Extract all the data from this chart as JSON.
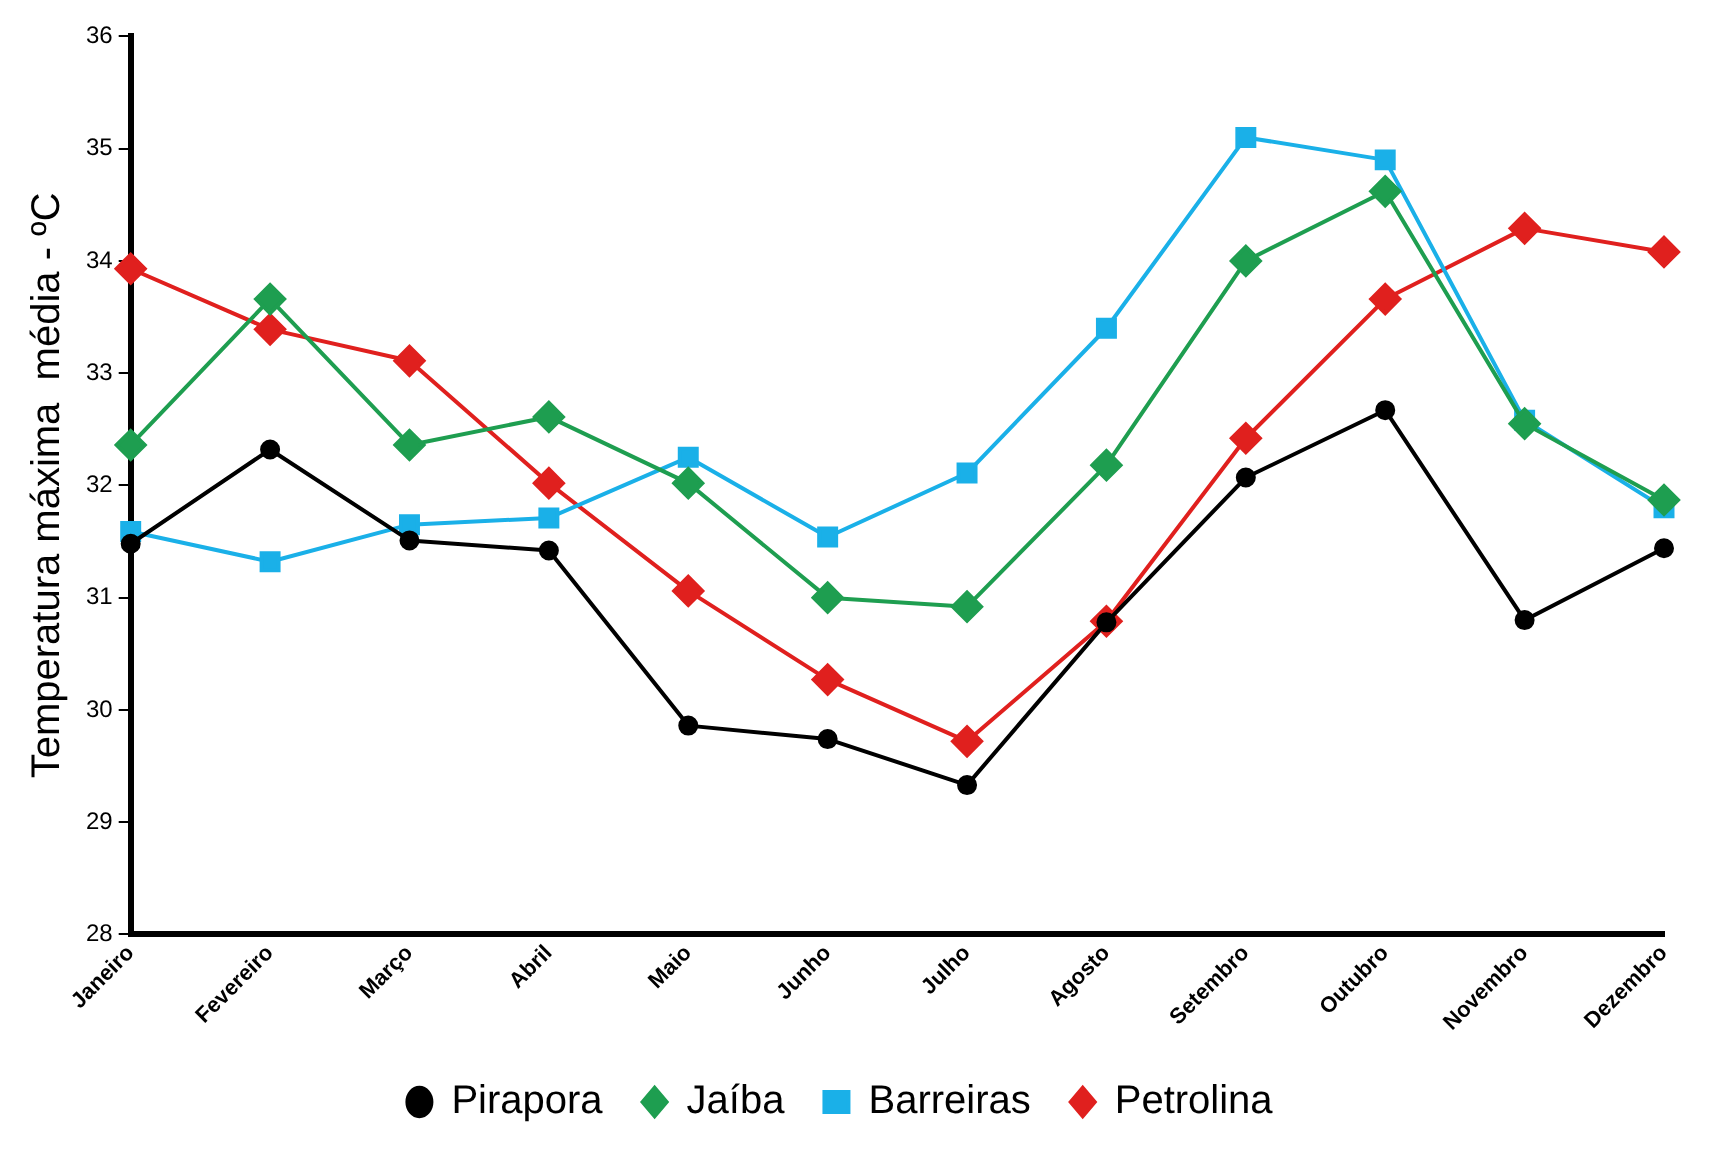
{
  "chart_data": {
    "type": "line",
    "ylabel": "Temperatura máxima  média - ºC",
    "categories": [
      "Janeiro",
      "Fevereiro",
      "Março",
      "Abril",
      "Maio",
      "Junho",
      "Julho",
      "Agosto",
      "Setembro",
      "Outubro",
      "Novembro",
      "Dezembro"
    ],
    "series": [
      {
        "name": "Pirapora",
        "color": "#000000",
        "marker": "circle",
        "values": [
          31.48,
          32.32,
          31.51,
          31.42,
          29.86,
          29.74,
          29.33,
          30.78,
          32.07,
          32.67,
          30.8,
          31.44
        ]
      },
      {
        "name": "Jaíba",
        "color": "#1e9e50",
        "marker": "diamond",
        "values": [
          32.36,
          33.66,
          32.36,
          32.61,
          32.02,
          31.0,
          30.92,
          32.18,
          34.0,
          34.62,
          32.55,
          31.87
        ]
      },
      {
        "name": "Barreiras",
        "color": "#1ab0e8",
        "marker": "square",
        "values": [
          31.59,
          31.32,
          31.65,
          31.71,
          32.25,
          31.54,
          32.11,
          33.4,
          35.1,
          34.9,
          32.58,
          31.8
        ]
      },
      {
        "name": "Petrolina",
        "color": "#e0201e",
        "marker": "diamond",
        "values": [
          33.93,
          33.39,
          33.11,
          32.02,
          31.06,
          30.27,
          29.72,
          30.79,
          32.42,
          33.66,
          34.29,
          34.08
        ]
      }
    ],
    "ylim": [
      28,
      36
    ],
    "yticks": [
      28,
      29,
      30,
      31,
      32,
      33,
      34,
      35,
      36
    ],
    "grid": false,
    "legend": "bottom"
  }
}
